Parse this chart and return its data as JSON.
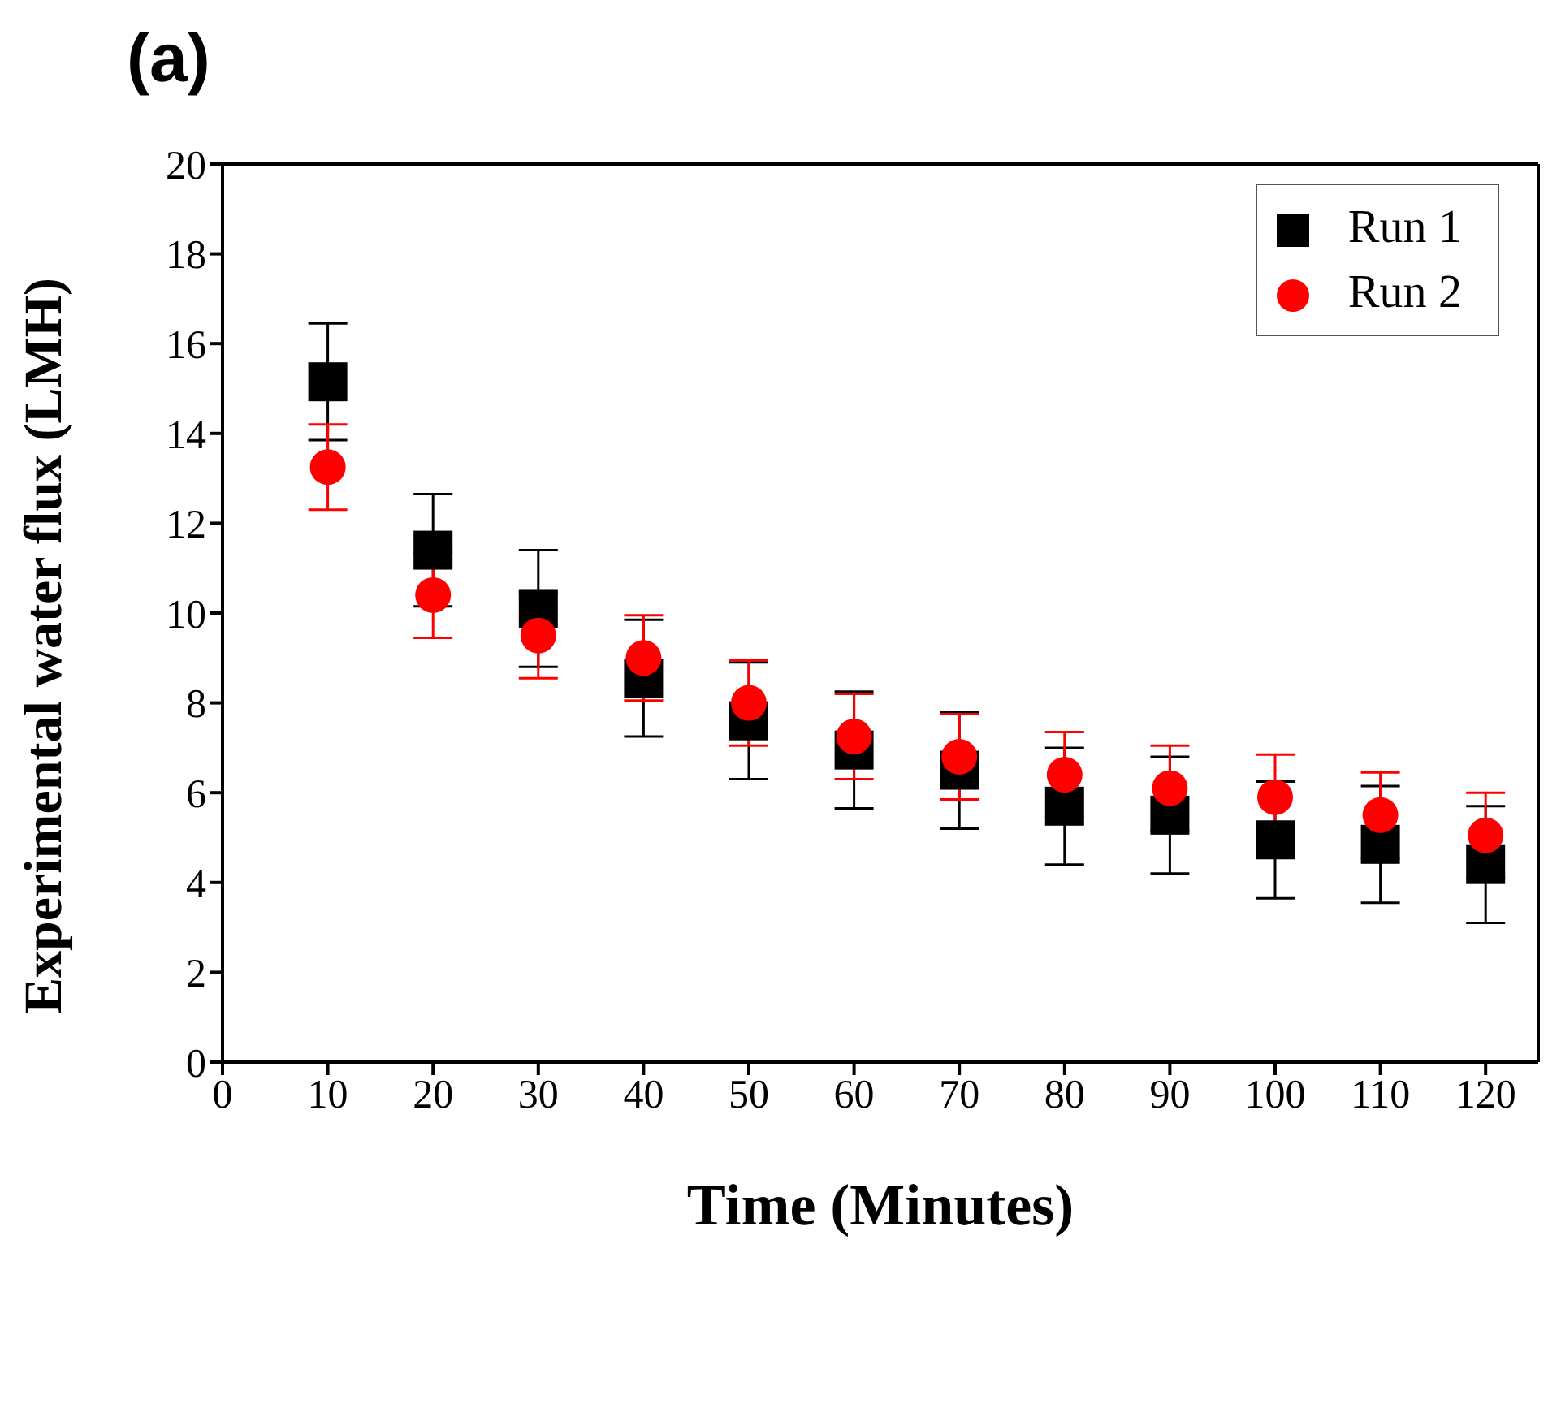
{
  "chart_data": {
    "type": "scatter",
    "title": "(a)",
    "xlabel": "Time (Minutes)",
    "ylabel": "Experimental water flux (LMH)",
    "x": [
      10,
      20,
      30,
      40,
      50,
      60,
      70,
      80,
      90,
      100,
      110,
      120
    ],
    "series": [
      {
        "name": "Run 1",
        "color": "#000000",
        "marker": "square",
        "values": [
          15.15,
          11.4,
          10.1,
          8.55,
          7.6,
          6.95,
          6.5,
          5.7,
          5.5,
          4.95,
          4.85,
          4.4
        ],
        "errors": [
          1.3,
          1.25,
          1.3,
          1.3,
          1.3,
          1.3,
          1.3,
          1.3,
          1.3,
          1.3,
          1.3,
          1.3
        ]
      },
      {
        "name": "Run 2",
        "color": "#ff0000",
        "marker": "circle",
        "values": [
          13.25,
          10.4,
          9.5,
          9.0,
          8.0,
          7.25,
          6.8,
          6.4,
          6.1,
          5.9,
          5.5,
          5.05
        ],
        "errors": [
          0.95,
          0.95,
          0.95,
          0.95,
          0.95,
          0.95,
          0.95,
          0.95,
          0.95,
          0.95,
          0.95,
          0.95
        ]
      }
    ],
    "xlim": [
      0,
      125
    ],
    "xticks": [
      0,
      10,
      20,
      30,
      40,
      50,
      60,
      70,
      80,
      90,
      100,
      110,
      120
    ],
    "ylim": [
      0,
      20
    ],
    "yticks": [
      0,
      2,
      4,
      6,
      8,
      10,
      12,
      14,
      16,
      18,
      20
    ],
    "grid": false,
    "legend": "top right"
  }
}
